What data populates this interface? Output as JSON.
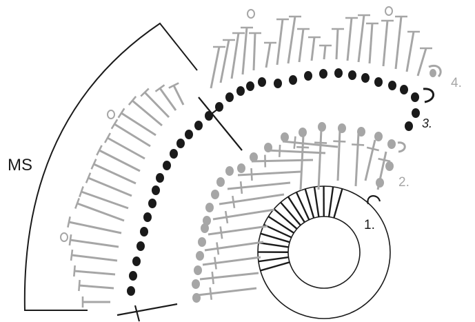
{
  "diagram": {
    "marker_label": "MS",
    "round_labels": {
      "r1": "1.",
      "r2": "2.",
      "r3": "3.",
      "r4": "4."
    },
    "colors": {
      "black": "#1a1a1a",
      "gray": "#a6a6a6",
      "background": "#ffffff"
    }
  }
}
